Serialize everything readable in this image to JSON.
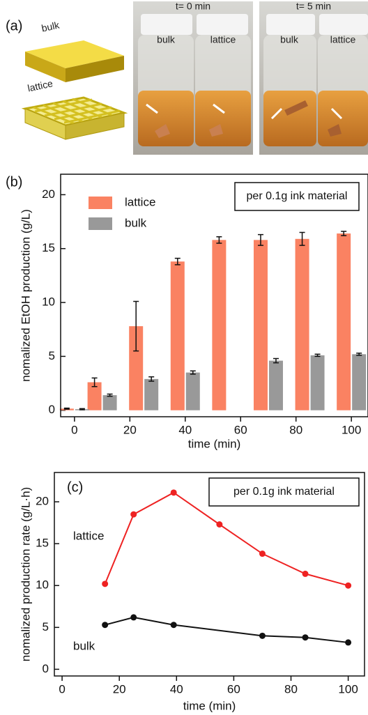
{
  "panel_a": {
    "label": "(a)",
    "shape_bulk": "bulk",
    "shape_lattice": "lattice",
    "photo_1": {
      "time": "t= 0 min",
      "left": "bulk",
      "right": "lattice"
    },
    "photo_2": {
      "time": "t= 5 min",
      "left": "bulk",
      "right": "lattice"
    }
  },
  "chart_data": [
    {
      "type": "bar",
      "panel_label": "(b)",
      "annotation": "per 0.1g ink material",
      "x_label": "time (min)",
      "y_label": "nomalized EtOH production (g/L)",
      "x": [
        0,
        10,
        25,
        40,
        55,
        70,
        85,
        100
      ],
      "series": [
        {
          "name": "lattice",
          "color": "#fa8262",
          "values": [
            0.15,
            2.6,
            7.8,
            13.8,
            15.8,
            15.8,
            15.9,
            16.4
          ],
          "errors": [
            0.05,
            0.4,
            2.3,
            0.3,
            0.3,
            0.5,
            0.6,
            0.2
          ]
        },
        {
          "name": "bulk",
          "color": "#999999",
          "values": [
            0.1,
            1.4,
            2.9,
            3.5,
            null,
            4.6,
            5.1,
            5.2
          ],
          "errors": [
            0.05,
            0.1,
            0.2,
            0.15,
            null,
            0.2,
            0.1,
            0.1
          ]
        }
      ],
      "xlim": [
        -5,
        106
      ],
      "xticks": [
        0,
        20,
        40,
        60,
        80,
        100
      ],
      "ylim": [
        -0.6,
        21.9
      ],
      "yticks": [
        0,
        5,
        10,
        15,
        20
      ],
      "legend": "upper left"
    },
    {
      "type": "line",
      "panel_label": "(c)",
      "annotation": "per 0.1g ink material",
      "x_label": "time (min)",
      "y_label": "nomalized production rate (g/L·h)",
      "series": [
        {
          "name": "lattice",
          "color": "#ee2222",
          "x": [
            15,
            25,
            39,
            55,
            70,
            85,
            100
          ],
          "values": [
            10.2,
            18.5,
            21.1,
            17.3,
            13.8,
            11.4,
            10.0
          ]
        },
        {
          "name": "bulk",
          "color": "#111111",
          "x": [
            15,
            25,
            39,
            70,
            85,
            100
          ],
          "values": [
            5.3,
            6.2,
            5.3,
            4.0,
            3.8,
            3.2
          ]
        }
      ],
      "xlim": [
        -2.7,
        105.7
      ],
      "xticks": [
        0,
        20,
        40,
        60,
        80,
        100
      ],
      "ylim": [
        -0.8,
        23.5
      ],
      "yticks": [
        0,
        5,
        10,
        15,
        20
      ]
    }
  ]
}
